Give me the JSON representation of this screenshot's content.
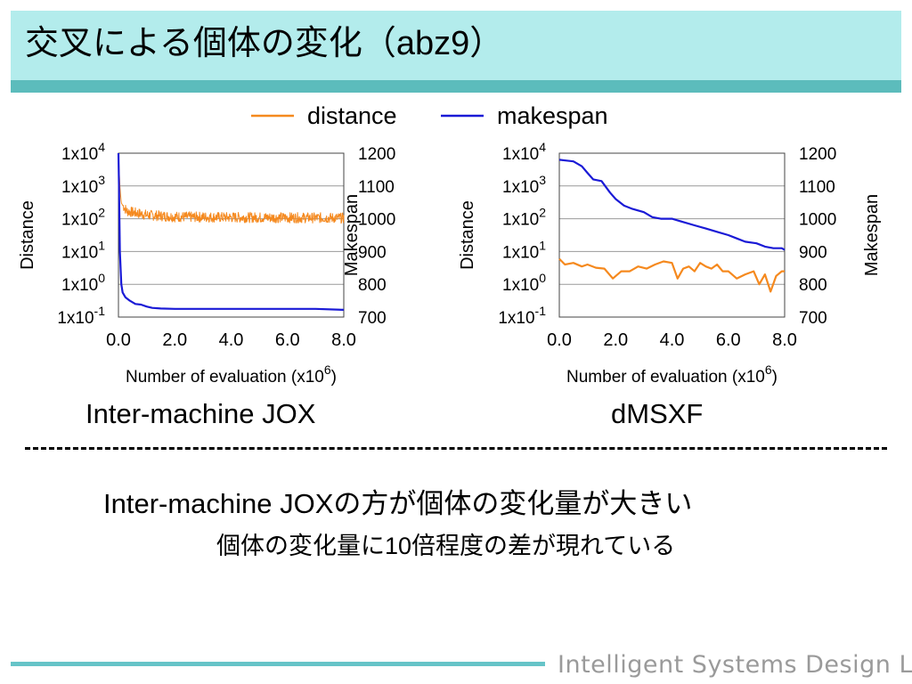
{
  "title": "交叉による個体の変化（abz9）",
  "legend": [
    {
      "name": "distance",
      "color": "#f5891e"
    },
    {
      "name": "makespan",
      "color": "#1a1ad6"
    }
  ],
  "captions": [
    "Inter-machine JOX",
    "dMSXF"
  ],
  "conclusion": {
    "line1": "Inter-machine JOXの方が個体の変化量が大きい",
    "line2": "個体の変化量に10倍程度の差が現れている"
  },
  "footer": "Intelligent Systems Design Lab.",
  "colors": {
    "title_bar": "#b3ecec",
    "title_rule": "#5cbcbc",
    "footer_rule": "#66c4c8"
  },
  "chart_data": [
    {
      "type": "line",
      "caption": "Inter-machine JOX",
      "xlabel": "Number of evaluation (x10",
      "xlabel_sup": "6",
      "xlabel_tail": ")",
      "ylabel_left": "Distance",
      "ylabel_right": "Makespan",
      "x_ticks": [
        "0.0",
        "2.0",
        "4.0",
        "6.0",
        "8.0"
      ],
      "xlim": [
        0,
        8
      ],
      "ylim_left_log10": [
        -1,
        4
      ],
      "ylim_right": [
        700,
        1200
      ],
      "left_ticks": [
        {
          "base": "1x10",
          "exp": "4"
        },
        {
          "base": "1x10",
          "exp": "3"
        },
        {
          "base": "1x10",
          "exp": "2"
        },
        {
          "base": "1x10",
          "exp": "1"
        },
        {
          "base": "1x10",
          "exp": "0"
        },
        {
          "base": "1x10",
          "exp": "-1"
        }
      ],
      "right_ticks": [
        "1200",
        "1100",
        "1000",
        "900",
        "800",
        "700"
      ],
      "grid": true,
      "series": [
        {
          "name": "distance",
          "axis": "left",
          "noisy": true,
          "x": [
            0.0,
            0.05,
            0.1,
            0.3,
            1.0,
            2.0,
            4.0,
            6.0,
            8.0
          ],
          "y": [
            10000,
            1000,
            300,
            170,
            130,
            115,
            110,
            108,
            105
          ]
        },
        {
          "name": "makespan",
          "axis": "right",
          "noisy": false,
          "x": [
            0.0,
            0.02,
            0.05,
            0.1,
            0.15,
            0.25,
            0.4,
            0.6,
            0.8,
            1.0,
            1.2,
            1.5,
            2.0,
            3.0,
            4.0,
            5.0,
            6.0,
            7.0,
            8.0
          ],
          "y": [
            1200,
            1100,
            900,
            800,
            775,
            760,
            750,
            740,
            738,
            732,
            728,
            726,
            725,
            725,
            725,
            725,
            725,
            725,
            722
          ]
        }
      ]
    },
    {
      "type": "line",
      "caption": "dMSXF",
      "xlabel": "Number of evaluation (x10",
      "xlabel_sup": "6",
      "xlabel_tail": ")",
      "ylabel_left": "Distance",
      "ylabel_right": "Makespan",
      "x_ticks": [
        "0.0",
        "2.0",
        "4.0",
        "6.0",
        "8.0"
      ],
      "xlim": [
        0,
        8
      ],
      "ylim_left_log10": [
        -1,
        4
      ],
      "ylim_right": [
        700,
        1200
      ],
      "left_ticks": [
        {
          "base": "1x10",
          "exp": "4"
        },
        {
          "base": "1x10",
          "exp": "3"
        },
        {
          "base": "1x10",
          "exp": "2"
        },
        {
          "base": "1x10",
          "exp": "1"
        },
        {
          "base": "1x10",
          "exp": "0"
        },
        {
          "base": "1x10",
          "exp": "-1"
        }
      ],
      "right_ticks": [
        "1200",
        "1100",
        "1000",
        "900",
        "800",
        "700"
      ],
      "grid": true,
      "series": [
        {
          "name": "distance",
          "axis": "left",
          "noisy": false,
          "x": [
            0.0,
            0.2,
            0.5,
            0.8,
            1.0,
            1.3,
            1.6,
            1.9,
            2.2,
            2.5,
            2.8,
            3.1,
            3.4,
            3.7,
            4.0,
            4.2,
            4.4,
            4.6,
            4.8,
            5.0,
            5.2,
            5.4,
            5.6,
            5.8,
            6.0,
            6.3,
            6.6,
            6.9,
            7.1,
            7.3,
            7.5,
            7.7,
            7.9,
            8.0
          ],
          "y": [
            6.0,
            4.0,
            4.5,
            3.5,
            4.0,
            3.2,
            3.0,
            1.5,
            2.5,
            2.5,
            3.5,
            3.0,
            4.0,
            5.0,
            4.5,
            1.5,
            3.0,
            3.5,
            2.5,
            4.5,
            3.5,
            3.0,
            4.0,
            2.5,
            2.5,
            1.5,
            2.0,
            2.5,
            1.0,
            2.0,
            0.6,
            1.8,
            2.5,
            2.5
          ]
        },
        {
          "name": "makespan",
          "axis": "right",
          "noisy": false,
          "x": [
            0.0,
            0.5,
            0.8,
            1.0,
            1.2,
            1.5,
            1.8,
            2.0,
            2.3,
            2.6,
            3.0,
            3.3,
            3.6,
            4.0,
            4.4,
            4.8,
            5.2,
            5.6,
            6.0,
            6.3,
            6.6,
            7.0,
            7.3,
            7.6,
            7.9,
            8.0
          ],
          "y": [
            1180,
            1175,
            1160,
            1140,
            1120,
            1115,
            1080,
            1060,
            1040,
            1030,
            1020,
            1005,
            1000,
            1000,
            990,
            980,
            970,
            960,
            950,
            940,
            930,
            925,
            915,
            910,
            910,
            905
          ]
        }
      ]
    }
  ]
}
